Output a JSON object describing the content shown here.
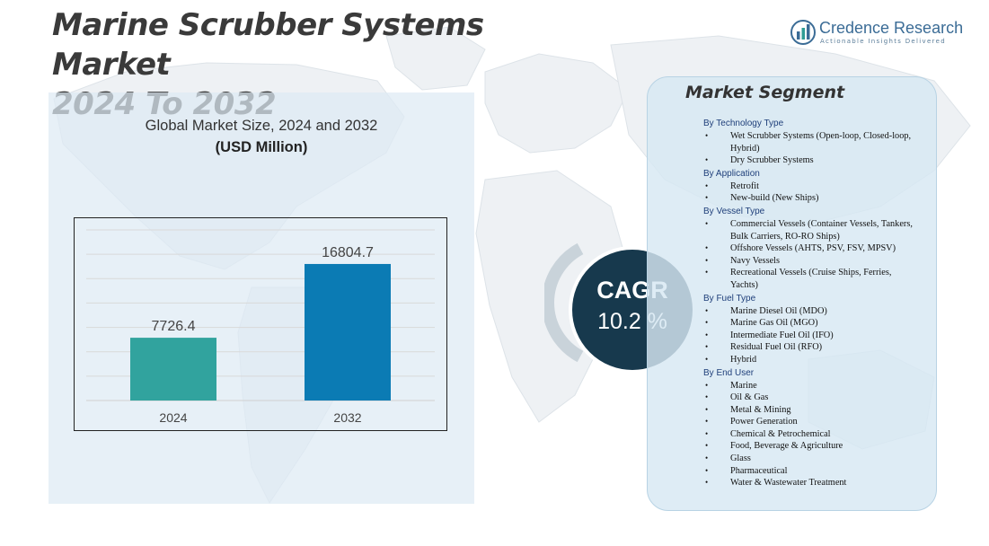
{
  "header": {
    "title_line1": "Marine Scrubber Systems Market",
    "title_line2": "2024 To 2032"
  },
  "logo": {
    "name": "Credence Research",
    "tagline": "Actionable Insights Delivered"
  },
  "chart_data": {
    "type": "bar",
    "title": "Global Market Size,  2024 and 2032",
    "unit_label": "(USD Million)",
    "categories": [
      "2024",
      "2032"
    ],
    "values": [
      7726.4,
      16804.7
    ],
    "value_labels": [
      "7726.4",
      "16804.7"
    ],
    "colors": [
      "#31a39e",
      "#0b7bb4"
    ],
    "ylim": [
      0,
      21000
    ],
    "grid": true,
    "xlabel": "",
    "ylabel": ""
  },
  "cagr": {
    "label": "CAGR",
    "value": "10.2 %"
  },
  "segments": {
    "heading": "Market Segment",
    "groups": [
      {
        "title": "By Technology Type",
        "items": [
          "Wet Scrubber Systems (Open-loop, Closed-loop, Hybrid)",
          "Dry Scrubber Systems"
        ]
      },
      {
        "title": "By Application",
        "items": [
          "Retrofit",
          "New-build (New Ships)"
        ]
      },
      {
        "title": "By Vessel Type",
        "items": [
          "Commercial  Vessels (Container Vessels, Tankers, Bulk Carriers,  RO-RO  Ships)",
          "Offshore Vessels (AHTS,  PSV,  FSV,  MPSV)",
          "Navy Vessels",
          "Recreational Vessels (Cruise Ships, Ferries, Yachts)"
        ]
      },
      {
        "title": "By Fuel Type",
        "items": [
          "Marine Diesel Oil (MDO)",
          "Marine Gas Oil (MGO)",
          "Intermediate Fuel Oil (IFO)",
          "Residual Fuel Oil (RFO)",
          "Hybrid"
        ]
      },
      {
        "title": "By End User",
        "items": [
          "Marine",
          "Oil & Gas",
          "Metal & Mining",
          "Power Generation",
          "Chemical  & Petrochemical",
          "Food, Beverage & Agriculture",
          "Glass",
          "Pharmaceutical",
          "Water & Wastewater Treatment"
        ]
      }
    ]
  }
}
